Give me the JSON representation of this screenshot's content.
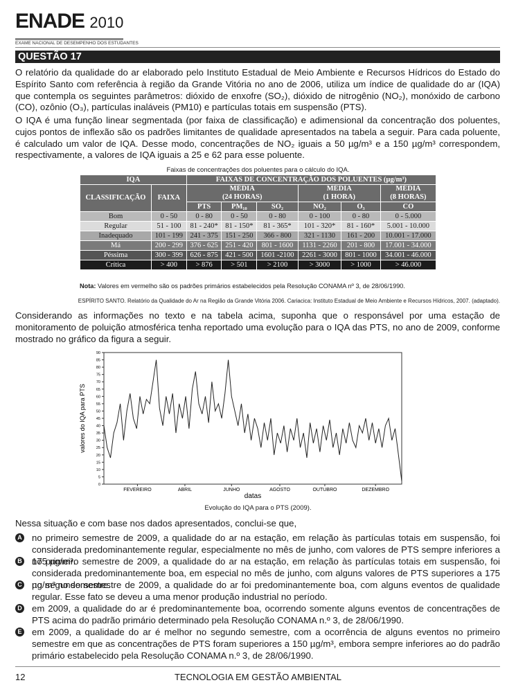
{
  "header": {
    "logo": "ENADE",
    "year": "2010",
    "subtitle": "EXAME NACIONAL DE DESEMPENHO DOS ESTUDANTES"
  },
  "question": "QUESTÃO 17",
  "paragraphs": [
    "O relatório da qualidade do ar elaborado pelo Instituto Estadual de Meio Ambiente e Recursos Hídricos do Estado do Espírito Santo com referência à região da Grande Vitória no ano de 2006, utiliza um índice de qualidade do ar (IQA) que contempla os seguintes parâmetros: dióxido de enxofre (SO₂), dióxido de nitrogênio (NO₂), monóxido de carbono (CO), ozônio (O₃), partículas inaláveis (PM10) e partículas totais em suspensão (PTS).",
    "O IQA é uma função linear segmentada (por faixa de classificação) e adimensional da concentração dos poluentes, cujos pontos de inflexão são os padrões limitantes de qualidade apresentados na tabela a seguir. Para cada poluente, é calculado um valor de IQA. Desse modo, concentrações de NO₂ iguais a 50 µg/m³ e a 150 µg/m³ correspondem, respectivamente, a valores de IQA iguais a 25 e 62 para esse poluente."
  ],
  "table": {
    "caption": "Faixas de concentrações dos poluentes para o cálculo do IQA.",
    "head": {
      "iqa": "IQA",
      "faixas": "FAIXAS DE CONCENTRAÇÃO DOS POLUENTES (µg/m³)",
      "classificacao": "CLASSIFICAÇÃO",
      "faixa": "FAIXA",
      "media24": [
        "MÉDIA",
        "(24 HORAS)"
      ],
      "media1": [
        "MÉDIA",
        "(1 HORA)"
      ],
      "media8": [
        "MÉDIA",
        "(8 HORAS)"
      ],
      "pollutants": [
        "PTS",
        "PM₁₀",
        "SO₂",
        "NO₂",
        "O₃",
        "CO"
      ]
    },
    "rows": [
      [
        "Bom",
        "0 - 50",
        "0 - 80",
        "0 - 50",
        "0 - 80",
        "0 - 100",
        "0 - 80",
        "0 - 5.000"
      ],
      [
        "Regular",
        "51 - 100",
        "81 - 240*",
        "81 - 150*",
        "81 - 365*",
        "101 - 320*",
        "81 - 160*",
        "5.001 - 10.000"
      ],
      [
        "Inadequado",
        "101 - 199",
        "241 - 375",
        "151 - 250",
        "366 - 800",
        "321 - 1130",
        "161 - 200",
        "10.001 - 17.000"
      ],
      [
        "Má",
        "200 - 299",
        "376 - 625",
        "251 - 420",
        "801 - 1600",
        "1131 - 2260",
        "201 - 800",
        "17.001 - 34.000"
      ],
      [
        "Péssima",
        "300 - 399",
        "626 - 875",
        "421 - 500",
        "1601 -2100",
        "2261 - 3000",
        "801 - 1000",
        "34.001 - 46.000"
      ],
      [
        "Crítica",
        "> 400",
        "> 876",
        "> 501",
        "> 2100",
        "> 3000",
        "> 1000",
        "> 46.000"
      ]
    ],
    "note_label": "Nota:",
    "note_text": "Valores em vermelho são os padrões primários estabelecidos pela Resolução CONAMA nº 3, de 28/06/1990.",
    "source": "ESPÍRITO SANTO. Relatório da Qualidade do Ar na Região da Grande Vitória 2006. Cariacica: Instituto Estadual de Meio Ambiente e Recursos Hídricos, 2007. (adaptado)."
  },
  "paragraph3": "Considerando as informações no texto e na tabela acima, suponha que o responsável por uma estação de monitoramento de poluição atmosférica tenha reportado uma evolução para o IQA das PTS, no ano de 2009, conforme mostrado no gráfico da figura a seguir.",
  "chart_data": {
    "type": "line",
    "caption": "Evolução do IQA para o PTS (2009).",
    "ylabel": "valores do IQA para PTS",
    "xlabel": "datas",
    "x": [
      1,
      5,
      9,
      13,
      17,
      21,
      25,
      29,
      33,
      37,
      41,
      45,
      49,
      53,
      57,
      61,
      65,
      69,
      73,
      77,
      81,
      85,
      89,
      93,
      97,
      101,
      105,
      109,
      113,
      117,
      121,
      125,
      129,
      133,
      137,
      141,
      145,
      149,
      153,
      157,
      161,
      165,
      169,
      173,
      177,
      181,
      185,
      189,
      193,
      197,
      201,
      205,
      209,
      213,
      217,
      221,
      225,
      229,
      233,
      237,
      241,
      245,
      249,
      253,
      257,
      261,
      265,
      269,
      273,
      277,
      281,
      285,
      289,
      293,
      297,
      301,
      305,
      309,
      313,
      317,
      321,
      325,
      329,
      333,
      337,
      341,
      345,
      349,
      353,
      357,
      361,
      365
    ],
    "series": [
      {
        "color": "#222222",
        "values": [
          40,
          25,
          18,
          35,
          42,
          55,
          30,
          50,
          62,
          45,
          38,
          60,
          48,
          58,
          55,
          70,
          85,
          52,
          40,
          60,
          48,
          62,
          35,
          55,
          45,
          60,
          38,
          65,
          77,
          55,
          48,
          60,
          42,
          70,
          50,
          55,
          45,
          62,
          85,
          60,
          50,
          40,
          55,
          35,
          48,
          30,
          45,
          38,
          25,
          42,
          30,
          45,
          20,
          35,
          28,
          40,
          22,
          38,
          30,
          45,
          25,
          35,
          18,
          42,
          28,
          38,
          22,
          40,
          30,
          44,
          25,
          35,
          20,
          38,
          28,
          42,
          30,
          25,
          40,
          35,
          45,
          30,
          42,
          28,
          38,
          25,
          40,
          45,
          30,
          38,
          20,
          2
        ]
      }
    ],
    "xlim": [
      1,
      365
    ],
    "ylim": [
      0,
      90
    ],
    "yticks": [
      0,
      5,
      10,
      15,
      20,
      25,
      30,
      35,
      40,
      45,
      50,
      55,
      60,
      65,
      70,
      75,
      80,
      85,
      90
    ],
    "xticks": [
      {
        "value": 42,
        "label": "FEVEREIRO"
      },
      {
        "value": 100,
        "label": "ABRIL"
      },
      {
        "value": 157,
        "label": "JUNHO"
      },
      {
        "value": 216,
        "label": "AGOSTO"
      },
      {
        "value": 271,
        "label": "OUTUBRO"
      },
      {
        "value": 333,
        "label": "DEZEMBRO"
      }
    ]
  },
  "prompt": "Nessa situação e com base nos dados apresentados, conclui-se que,",
  "options": [
    {
      "letter": "A",
      "text": "no primeiro semestre de 2009, a qualidade do ar na estação, em relação às partículas totais em suspensão, foi considerada predominantemente regular, especialmente no mês de junho, com valores de PTS sempre inferiores a 175 µg/m³."
    },
    {
      "letter": "B",
      "text": "no primeiro semestre de 2009, a qualidade do ar na estação, em relação às partículas totais em suspensão, foi considerada predominantemente boa, em especial no mês de junho, com alguns valores de PTS superiores a 175 µg/m³ no semestre."
    },
    {
      "letter": "C",
      "text": "no segundo semestre de 2009, a qualidade do ar foi predominantemente boa, com alguns eventos de qualidade regular. Esse fato se deveu a uma menor produção industrial no período."
    },
    {
      "letter": "D",
      "text": "em 2009, a qualidade do ar é predominantemente boa, ocorrendo somente alguns eventos de concentrações de PTS acima do padrão primário determinado pela Resolução CONAMA n.º 3, de 28/06/1990."
    },
    {
      "letter": "E",
      "text": "em 2009, a qualidade do ar é melhor no segundo semestre, com a ocorrência de alguns eventos no primeiro semestre em que as concentrações de PTS foram superiores a 150 µg/m³, embora sempre inferiores ao do padrão primário estabelecido pela Resolução CONAMA n.º 3, de 28/06/1990."
    }
  ],
  "footer": {
    "page": "12",
    "course": "TECNOLOGIA EM GESTÃO AMBIENTAL"
  }
}
